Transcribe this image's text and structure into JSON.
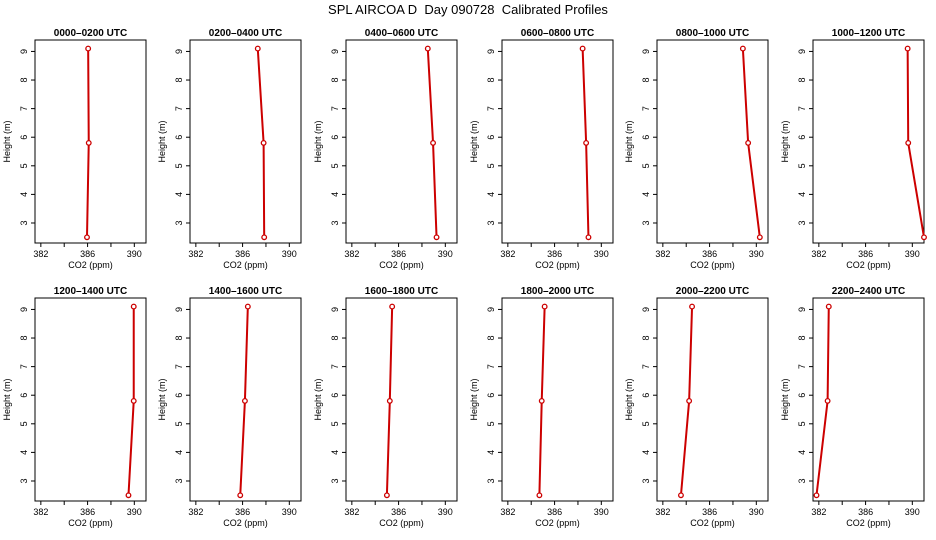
{
  "title": "SPL AIRCOA D  Day 090728  Calibrated Profiles",
  "line_color": "#cc0000",
  "chart_data": [
    {
      "type": "line",
      "title": "0000–0200 UTC",
      "xlabel": "CO2 (ppm)",
      "ylabel": "Height (m)",
      "xlim": [
        381.5,
        391
      ],
      "ylim": [
        2.3,
        9.4
      ],
      "xticks": [
        382,
        386,
        390
      ],
      "yticks": [
        3,
        4,
        5,
        6,
        7,
        8,
        9
      ],
      "heights": [
        2.5,
        5.8,
        9.1
      ],
      "co2": [
        385.95,
        386.1,
        386.05
      ]
    },
    {
      "type": "line",
      "title": "0200–0400 UTC",
      "xlabel": "CO2 (ppm)",
      "ylabel": "Height (m)",
      "xlim": [
        381.5,
        391
      ],
      "ylim": [
        2.3,
        9.4
      ],
      "xticks": [
        382,
        386,
        390
      ],
      "yticks": [
        3,
        4,
        5,
        6,
        7,
        8,
        9
      ],
      "heights": [
        2.5,
        5.8,
        9.1
      ],
      "co2": [
        387.85,
        387.8,
        387.3
      ]
    },
    {
      "type": "line",
      "title": "0400–0600 UTC",
      "xlabel": "CO2 (ppm)",
      "ylabel": "Height (m)",
      "xlim": [
        381.5,
        391
      ],
      "ylim": [
        2.3,
        9.4
      ],
      "xticks": [
        382,
        386,
        390
      ],
      "yticks": [
        3,
        4,
        5,
        6,
        7,
        8,
        9
      ],
      "heights": [
        2.5,
        5.8,
        9.1
      ],
      "co2": [
        389.25,
        388.95,
        388.5
      ]
    },
    {
      "type": "line",
      "title": "0600–0800 UTC",
      "xlabel": "CO2 (ppm)",
      "ylabel": "Height (m)",
      "xlim": [
        381.5,
        391
      ],
      "ylim": [
        2.3,
        9.4
      ],
      "xticks": [
        382,
        386,
        390
      ],
      "yticks": [
        3,
        4,
        5,
        6,
        7,
        8,
        9
      ],
      "heights": [
        2.5,
        5.8,
        9.1
      ],
      "co2": [
        388.9,
        388.7,
        388.4
      ]
    },
    {
      "type": "line",
      "title": "0800–1000 UTC",
      "xlabel": "CO2 (ppm)",
      "ylabel": "Height (m)",
      "xlim": [
        381.5,
        391
      ],
      "ylim": [
        2.3,
        9.4
      ],
      "xticks": [
        382,
        386,
        390
      ],
      "yticks": [
        3,
        4,
        5,
        6,
        7,
        8,
        9
      ],
      "heights": [
        2.5,
        5.8,
        9.1
      ],
      "co2": [
        390.3,
        389.3,
        388.85
      ]
    },
    {
      "type": "line",
      "title": "1000–1200 UTC",
      "xlabel": "CO2 (ppm)",
      "ylabel": "Height (m)",
      "xlim": [
        381.5,
        391
      ],
      "ylim": [
        2.3,
        9.4
      ],
      "xticks": [
        382,
        386,
        390
      ],
      "yticks": [
        3,
        4,
        5,
        6,
        7,
        8,
        9
      ],
      "heights": [
        2.5,
        5.8,
        9.1
      ],
      "co2": [
        391.0,
        389.65,
        389.6
      ]
    },
    {
      "type": "line",
      "title": "1200–1400 UTC",
      "xlabel": "CO2 (ppm)",
      "ylabel": "Height (m)",
      "xlim": [
        381.5,
        391
      ],
      "ylim": [
        2.3,
        9.4
      ],
      "xticks": [
        382,
        386,
        390
      ],
      "yticks": [
        3,
        4,
        5,
        6,
        7,
        8,
        9
      ],
      "heights": [
        2.5,
        5.8,
        9.1
      ],
      "co2": [
        389.5,
        389.95,
        389.95
      ]
    },
    {
      "type": "line",
      "title": "1400–1600 UTC",
      "xlabel": "CO2 (ppm)",
      "ylabel": "Height (m)",
      "xlim": [
        381.5,
        391
      ],
      "ylim": [
        2.3,
        9.4
      ],
      "xticks": [
        382,
        386,
        390
      ],
      "yticks": [
        3,
        4,
        5,
        6,
        7,
        8,
        9
      ],
      "heights": [
        2.5,
        5.8,
        9.1
      ],
      "co2": [
        385.8,
        386.2,
        386.45
      ]
    },
    {
      "type": "line",
      "title": "1600–1800 UTC",
      "xlabel": "CO2 (ppm)",
      "ylabel": "Height (m)",
      "xlim": [
        381.5,
        391
      ],
      "ylim": [
        2.3,
        9.4
      ],
      "xticks": [
        382,
        386,
        390
      ],
      "yticks": [
        3,
        4,
        5,
        6,
        7,
        8,
        9
      ],
      "heights": [
        2.5,
        5.8,
        9.1
      ],
      "co2": [
        385.0,
        385.25,
        385.45
      ]
    },
    {
      "type": "line",
      "title": "1800–2000 UTC",
      "xlabel": "CO2 (ppm)",
      "ylabel": "Height (m)",
      "xlim": [
        381.5,
        391
      ],
      "ylim": [
        2.3,
        9.4
      ],
      "xticks": [
        382,
        386,
        390
      ],
      "yticks": [
        3,
        4,
        5,
        6,
        7,
        8,
        9
      ],
      "heights": [
        2.5,
        5.8,
        9.1
      ],
      "co2": [
        384.7,
        384.9,
        385.15
      ]
    },
    {
      "type": "line",
      "title": "2000–2200 UTC",
      "xlabel": "CO2 (ppm)",
      "ylabel": "Height (m)",
      "xlim": [
        381.5,
        391
      ],
      "ylim": [
        2.3,
        9.4
      ],
      "xticks": [
        382,
        386,
        390
      ],
      "yticks": [
        3,
        4,
        5,
        6,
        7,
        8,
        9
      ],
      "heights": [
        2.5,
        5.8,
        9.1
      ],
      "co2": [
        383.55,
        384.25,
        384.5
      ]
    },
    {
      "type": "line",
      "title": "2200–2400 UTC",
      "xlabel": "CO2 (ppm)",
      "ylabel": "Height (m)",
      "xlim": [
        381.5,
        391
      ],
      "ylim": [
        2.3,
        9.4
      ],
      "xticks": [
        382,
        386,
        390
      ],
      "yticks": [
        3,
        4,
        5,
        6,
        7,
        8,
        9
      ],
      "heights": [
        2.5,
        5.8,
        9.1
      ],
      "co2": [
        381.8,
        382.75,
        382.85
      ]
    }
  ]
}
